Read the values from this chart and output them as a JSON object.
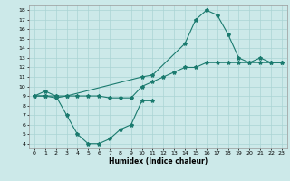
{
  "xlabel": "Humidex (Indice chaleur)",
  "xlim": [
    -0.5,
    23.5
  ],
  "ylim": [
    3.5,
    18.5
  ],
  "xticks": [
    0,
    1,
    2,
    3,
    4,
    5,
    6,
    7,
    8,
    9,
    10,
    11,
    12,
    13,
    14,
    15,
    16,
    17,
    18,
    19,
    20,
    21,
    22,
    23
  ],
  "yticks": [
    4,
    5,
    6,
    7,
    8,
    9,
    10,
    11,
    12,
    13,
    14,
    15,
    16,
    17,
    18
  ],
  "bg_color": "#cce9e9",
  "line_color": "#1a7a6e",
  "grid_color": "#aad4d4",
  "line1_x": [
    0,
    1,
    2,
    3,
    10,
    11,
    14,
    15,
    16,
    17,
    18,
    19,
    20,
    21,
    22,
    23
  ],
  "line1_y": [
    9,
    9.5,
    9,
    9,
    11,
    11.2,
    14.5,
    17,
    18,
    17.5,
    15.5,
    13,
    12.5,
    13,
    12.5,
    12.5
  ],
  "line2_x": [
    0,
    1,
    2,
    3,
    4,
    5,
    6,
    7,
    8,
    9,
    10,
    11,
    12,
    13,
    14,
    15,
    16,
    17,
    18,
    19,
    20,
    21,
    22,
    23
  ],
  "line2_y": [
    9,
    9,
    8.8,
    9,
    9,
    9,
    9,
    8.8,
    8.8,
    8.8,
    10,
    10.5,
    11,
    11.5,
    12,
    12,
    12.5,
    12.5,
    12.5,
    12.5,
    12.5,
    12.5,
    12.5,
    12.5
  ],
  "line3_x": [
    0,
    1,
    2,
    3,
    4,
    5,
    6,
    7,
    8,
    9,
    10,
    11
  ],
  "line3_y": [
    9,
    9,
    9,
    7,
    5,
    4,
    4,
    4.5,
    5.5,
    6,
    8.5,
    8.5
  ]
}
